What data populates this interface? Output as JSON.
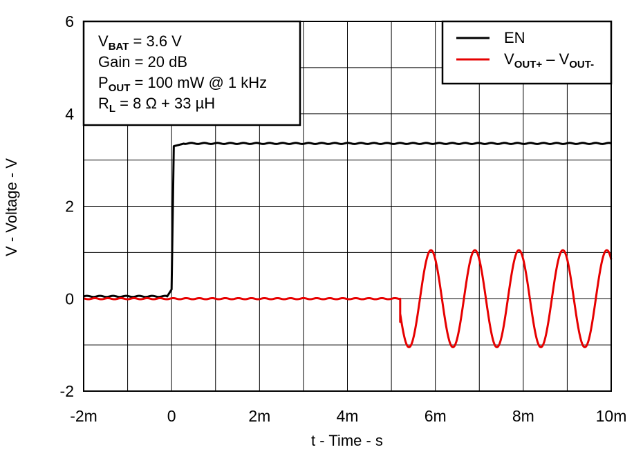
{
  "chart_data": {
    "type": "line",
    "title": "",
    "xlabel": "t - Time - s",
    "ylabel": "V - Voltage - V",
    "xlim": [
      -0.002,
      0.01
    ],
    "ylim": [
      -2,
      6
    ],
    "x_ticks": [
      {
        "value": -0.002,
        "label": "-2m"
      },
      {
        "value": 0.0,
        "label": "0"
      },
      {
        "value": 0.002,
        "label": "2m"
      },
      {
        "value": 0.004,
        "label": "4m"
      },
      {
        "value": 0.006,
        "label": "6m"
      },
      {
        "value": 0.008,
        "label": "8m"
      },
      {
        "value": 0.01,
        "label": "10m"
      }
    ],
    "y_ticks": [
      {
        "value": -2,
        "label": "-2"
      },
      {
        "value": 0,
        "label": "0"
      },
      {
        "value": 2,
        "label": "2"
      },
      {
        "value": 4,
        "label": "4"
      },
      {
        "value": 6,
        "label": "6"
      }
    ],
    "grid": true,
    "grid_x_step": 0.001,
    "grid_y_step": 1,
    "legend_position": "top-right",
    "annotation_position": "top-left",
    "annotations": [
      {
        "main": "V",
        "sub": "BAT",
        "rest": " = 3.6 V"
      },
      {
        "main": "Gain = 20 dB",
        "sub": "",
        "rest": ""
      },
      {
        "main": "P",
        "sub": "OUT",
        "rest": " = 100 mW @ 1 kHz"
      },
      {
        "main": "R",
        "sub": "L",
        "rest": " = 8 Ω + 33 µH"
      }
    ],
    "series": [
      {
        "name": "EN",
        "legend": {
          "main": "EN",
          "sub": "",
          "mid": "",
          "main2": "",
          "sub2": ""
        },
        "color": "#000000",
        "x": [
          -0.002,
          -0.0001,
          0.0,
          5e-05,
          0.0003,
          0.01
        ],
        "y": [
          0.05,
          0.05,
          0.2,
          3.3,
          3.36,
          3.36
        ]
      },
      {
        "name": "VOUT+ – VOUT-",
        "legend": {
          "main": "V",
          "sub": "OUT+",
          "mid": " – V",
          "main2": "",
          "sub2": "OUT-"
        },
        "color": "#e60000",
        "x": [
          -0.002,
          0.0052
        ],
        "y": [
          0.0,
          0.0
        ],
        "sine": {
          "start": 0.0052,
          "end": 0.01,
          "amplitude": 1.05,
          "frequency_hz": 1000,
          "first_peak": 0.0059,
          "pre_step": -0.5
        }
      }
    ]
  }
}
